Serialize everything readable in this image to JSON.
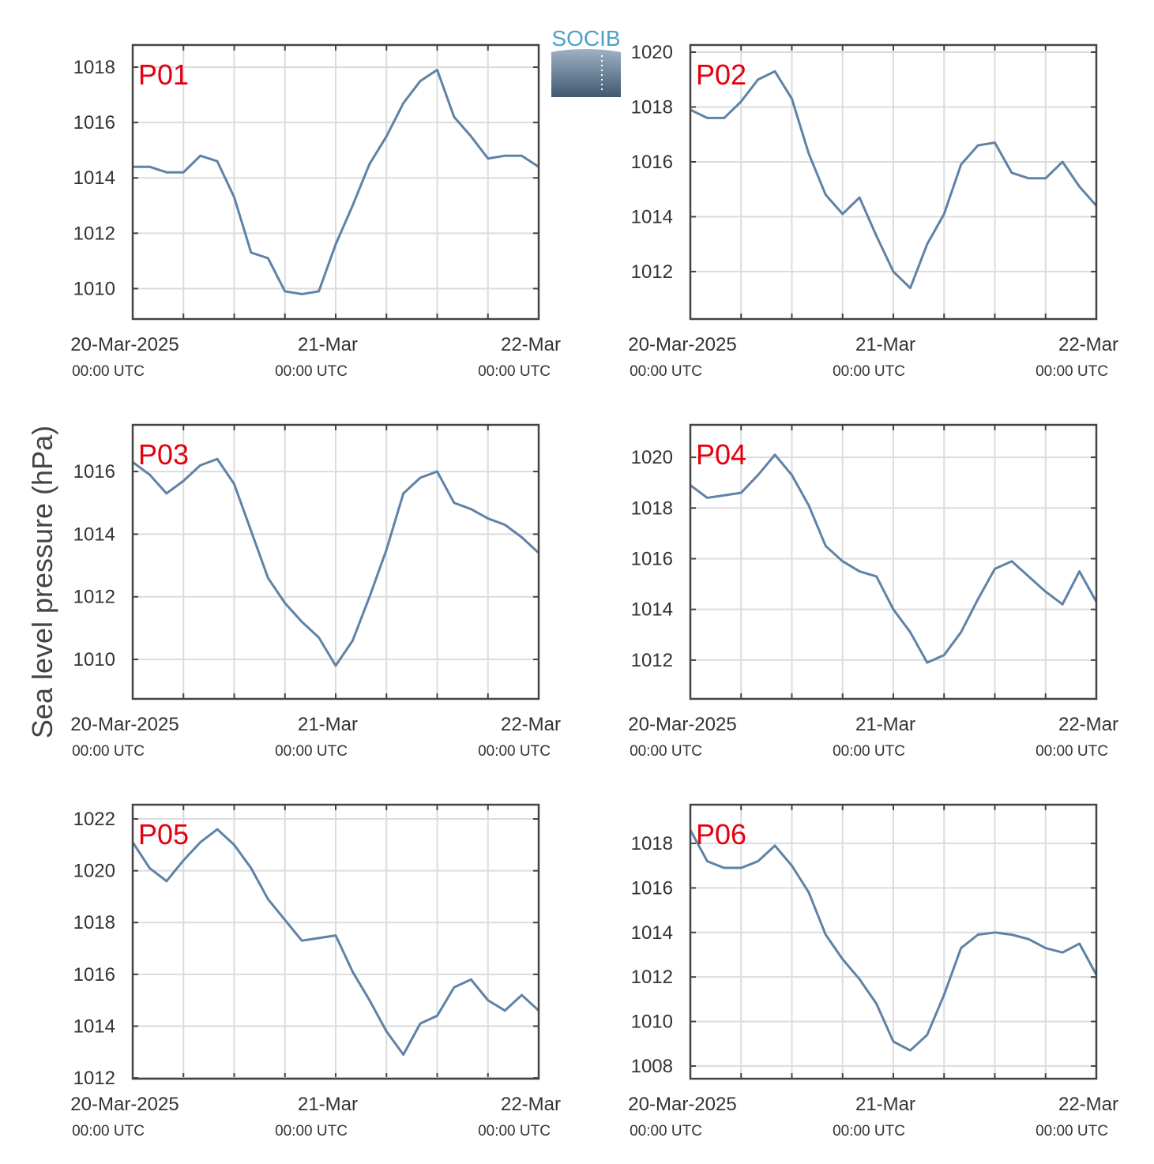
{
  "ylabel": "Sea level pressure (hPa)",
  "logo": "SOCIB",
  "chart_data": [
    {
      "type": "line",
      "label": "P01",
      "x": [
        "2025-03-20T00:00",
        "2025-03-20T02:00",
        "2025-03-20T04:00",
        "2025-03-20T06:00",
        "2025-03-20T08:00",
        "2025-03-20T10:00",
        "2025-03-20T12:00",
        "2025-03-20T14:00",
        "2025-03-20T16:00",
        "2025-03-20T18:00",
        "2025-03-20T20:00",
        "2025-03-20T22:00",
        "2025-03-21T00:00",
        "2025-03-21T02:00",
        "2025-03-21T04:00",
        "2025-03-21T06:00",
        "2025-03-21T08:00",
        "2025-03-21T10:00",
        "2025-03-21T12:00",
        "2025-03-21T14:00",
        "2025-03-21T16:00",
        "2025-03-21T18:00",
        "2025-03-21T20:00",
        "2025-03-21T22:00",
        "2025-03-22T00:00"
      ],
      "series": [
        {
          "color": "#5f82a6",
          "values": [
            1014.4,
            1014.4,
            1014.2,
            1014.2,
            1014.8,
            1014.6,
            1013.3,
            1011.3,
            1011.1,
            1009.9,
            1009.8,
            1009.9,
            1011.6,
            1013.0,
            1014.5,
            1015.5,
            1016.7,
            1017.5,
            1017.9,
            1016.2,
            1015.5,
            1014.7,
            1014.8,
            1014.8,
            1014.4
          ]
        }
      ],
      "xlim": [
        "2025-03-20T00:00",
        "2025-03-22T00:00"
      ],
      "xticks": [
        {
          "value": "2025-03-20T00:00",
          "label": "20-Mar-2025",
          "time_label": "00:00 UTC"
        },
        {
          "value": "2025-03-20T06:00",
          "label": null
        },
        {
          "value": "2025-03-20T12:00",
          "label": null
        },
        {
          "value": "2025-03-20T18:00",
          "label": null
        },
        {
          "value": "2025-03-21T00:00",
          "label": "21-Mar",
          "time_label": "00:00 UTC"
        },
        {
          "value": "2025-03-21T06:00",
          "label": null
        },
        {
          "value": "2025-03-21T12:00",
          "label": null
        },
        {
          "value": "2025-03-21T18:00",
          "label": null
        },
        {
          "value": "2025-03-22T00:00",
          "label": "22-Mar",
          "time_label": "00:00 UTC"
        }
      ],
      "ylim": [
        1008.9,
        1018.8
      ],
      "yticks": [
        1010,
        1012,
        1014,
        1016,
        1018
      ],
      "grid": true
    },
    {
      "type": "line",
      "label": "P02",
      "x": [
        "2025-03-20T00:00",
        "2025-03-20T02:00",
        "2025-03-20T04:00",
        "2025-03-20T06:00",
        "2025-03-20T08:00",
        "2025-03-20T10:00",
        "2025-03-20T12:00",
        "2025-03-20T14:00",
        "2025-03-20T16:00",
        "2025-03-20T18:00",
        "2025-03-20T20:00",
        "2025-03-20T22:00",
        "2025-03-21T00:00",
        "2025-03-21T02:00",
        "2025-03-21T04:00",
        "2025-03-21T06:00",
        "2025-03-21T08:00",
        "2025-03-21T10:00",
        "2025-03-21T12:00",
        "2025-03-21T14:00",
        "2025-03-21T16:00",
        "2025-03-21T18:00",
        "2025-03-21T20:00",
        "2025-03-21T22:00",
        "2025-03-22T00:00"
      ],
      "series": [
        {
          "color": "#5f82a6",
          "values": [
            1017.9,
            1017.6,
            1017.6,
            1018.2,
            1019.0,
            1019.3,
            1018.3,
            1016.3,
            1014.8,
            1014.1,
            1014.7,
            1013.3,
            1012.0,
            1011.4,
            1013.0,
            1014.1,
            1015.9,
            1016.6,
            1016.7,
            1015.6,
            1015.4,
            1015.4,
            1016.0,
            1015.1,
            1014.4
          ]
        }
      ],
      "xlim": [
        "2025-03-20T00:00",
        "2025-03-22T00:00"
      ],
      "xticks": [
        {
          "value": "2025-03-20T00:00",
          "label": "20-Mar-2025",
          "time_label": "00:00 UTC"
        },
        {
          "value": "2025-03-20T06:00",
          "label": null
        },
        {
          "value": "2025-03-20T12:00",
          "label": null
        },
        {
          "value": "2025-03-20T18:00",
          "label": null
        },
        {
          "value": "2025-03-21T00:00",
          "label": "21-Mar",
          "time_label": "00:00 UTC"
        },
        {
          "value": "2025-03-21T06:00",
          "label": null
        },
        {
          "value": "2025-03-21T12:00",
          "label": null
        },
        {
          "value": "2025-03-21T18:00",
          "label": null
        },
        {
          "value": "2025-03-22T00:00",
          "label": "22-Mar",
          "time_label": "00:00 UTC"
        }
      ],
      "ylim": [
        1010.27,
        1020.26
      ],
      "yticks": [
        1012,
        1014,
        1016,
        1018,
        1020
      ],
      "grid": true
    },
    {
      "type": "line",
      "label": "P03",
      "x": [
        "2025-03-20T00:00",
        "2025-03-20T02:00",
        "2025-03-20T04:00",
        "2025-03-20T06:00",
        "2025-03-20T08:00",
        "2025-03-20T10:00",
        "2025-03-20T12:00",
        "2025-03-20T14:00",
        "2025-03-20T16:00",
        "2025-03-20T18:00",
        "2025-03-20T20:00",
        "2025-03-20T22:00",
        "2025-03-21T00:00",
        "2025-03-21T02:00",
        "2025-03-21T04:00",
        "2025-03-21T06:00",
        "2025-03-21T08:00",
        "2025-03-21T10:00",
        "2025-03-21T12:00",
        "2025-03-21T14:00",
        "2025-03-21T16:00",
        "2025-03-21T18:00",
        "2025-03-21T20:00",
        "2025-03-21T22:00",
        "2025-03-22T00:00"
      ],
      "series": [
        {
          "color": "#5f82a6",
          "values": [
            1016.3,
            1015.9,
            1015.3,
            1015.7,
            1016.2,
            1016.4,
            1015.6,
            1014.1,
            1012.6,
            1011.8,
            1011.2,
            1010.7,
            1009.8,
            1010.6,
            1012.0,
            1013.5,
            1015.3,
            1015.8,
            1016.0,
            1015.0,
            1014.8,
            1014.5,
            1014.3,
            1013.9,
            1013.4
          ]
        }
      ],
      "xlim": [
        "2025-03-20T00:00",
        "2025-03-22T00:00"
      ],
      "xticks": [
        {
          "value": "2025-03-20T00:00",
          "label": "20-Mar-2025",
          "time_label": "00:00 UTC"
        },
        {
          "value": "2025-03-20T06:00",
          "label": null
        },
        {
          "value": "2025-03-20T12:00",
          "label": null
        },
        {
          "value": "2025-03-20T18:00",
          "label": null
        },
        {
          "value": "2025-03-21T00:00",
          "label": "21-Mar",
          "time_label": "00:00 UTC"
        },
        {
          "value": "2025-03-21T06:00",
          "label": null
        },
        {
          "value": "2025-03-21T12:00",
          "label": null
        },
        {
          "value": "2025-03-21T18:00",
          "label": null
        },
        {
          "value": "2025-03-22T00:00",
          "label": "22-Mar",
          "time_label": "00:00 UTC"
        }
      ],
      "ylim": [
        1008.74,
        1017.49
      ],
      "yticks": [
        1010,
        1012,
        1014,
        1016
      ],
      "grid": true
    },
    {
      "type": "line",
      "label": "P04",
      "x": [
        "2025-03-20T00:00",
        "2025-03-20T02:00",
        "2025-03-20T04:00",
        "2025-03-20T06:00",
        "2025-03-20T08:00",
        "2025-03-20T10:00",
        "2025-03-20T12:00",
        "2025-03-20T14:00",
        "2025-03-20T16:00",
        "2025-03-20T18:00",
        "2025-03-20T20:00",
        "2025-03-20T22:00",
        "2025-03-21T00:00",
        "2025-03-21T02:00",
        "2025-03-21T04:00",
        "2025-03-21T06:00",
        "2025-03-21T08:00",
        "2025-03-21T10:00",
        "2025-03-21T12:00",
        "2025-03-21T14:00",
        "2025-03-21T16:00",
        "2025-03-21T18:00",
        "2025-03-21T20:00",
        "2025-03-21T22:00",
        "2025-03-22T00:00"
      ],
      "series": [
        {
          "color": "#5f82a6",
          "values": [
            1018.9,
            1018.4,
            1018.5,
            1018.6,
            1019.3,
            1020.1,
            1019.3,
            1018.1,
            1016.5,
            1015.9,
            1015.5,
            1015.3,
            1014.0,
            1013.1,
            1011.9,
            1012.2,
            1013.1,
            1014.4,
            1015.6,
            1015.9,
            1015.3,
            1014.7,
            1014.2,
            1015.5,
            1014.3
          ]
        }
      ],
      "xlim": [
        "2025-03-20T00:00",
        "2025-03-22T00:00"
      ],
      "xticks": [
        {
          "value": "2025-03-20T00:00",
          "label": "20-Mar-2025",
          "time_label": "00:00 UTC"
        },
        {
          "value": "2025-03-20T06:00",
          "label": null
        },
        {
          "value": "2025-03-20T12:00",
          "label": null
        },
        {
          "value": "2025-03-20T18:00",
          "label": null
        },
        {
          "value": "2025-03-21T00:00",
          "label": "21-Mar",
          "time_label": "00:00 UTC"
        },
        {
          "value": "2025-03-21T06:00",
          "label": null
        },
        {
          "value": "2025-03-21T12:00",
          "label": null
        },
        {
          "value": "2025-03-21T18:00",
          "label": null
        },
        {
          "value": "2025-03-22T00:00",
          "label": "22-Mar",
          "time_label": "00:00 UTC"
        }
      ],
      "ylim": [
        1010.47,
        1021.28
      ],
      "yticks": [
        1012,
        1014,
        1016,
        1018,
        1020
      ],
      "grid": true
    },
    {
      "type": "line",
      "label": "P05",
      "x": [
        "2025-03-20T00:00",
        "2025-03-20T02:00",
        "2025-03-20T04:00",
        "2025-03-20T06:00",
        "2025-03-20T08:00",
        "2025-03-20T10:00",
        "2025-03-20T12:00",
        "2025-03-20T14:00",
        "2025-03-20T16:00",
        "2025-03-20T18:00",
        "2025-03-20T20:00",
        "2025-03-20T22:00",
        "2025-03-21T00:00",
        "2025-03-21T02:00",
        "2025-03-21T04:00",
        "2025-03-21T06:00",
        "2025-03-21T08:00",
        "2025-03-21T10:00",
        "2025-03-21T12:00",
        "2025-03-21T14:00",
        "2025-03-21T16:00",
        "2025-03-21T18:00",
        "2025-03-21T20:00",
        "2025-03-21T22:00",
        "2025-03-22T00:00"
      ],
      "series": [
        {
          "color": "#5f82a6",
          "values": [
            1021.1,
            1020.1,
            1019.6,
            1020.4,
            1021.1,
            1021.6,
            1021.0,
            1020.1,
            1018.9,
            1018.1,
            1017.3,
            1017.4,
            1017.5,
            1016.1,
            1015.0,
            1013.8,
            1012.9,
            1014.1,
            1014.4,
            1015.5,
            1015.8,
            1015.0,
            1014.6,
            1015.2,
            1014.6
          ]
        }
      ],
      "xlim": [
        "2025-03-20T00:00",
        "2025-03-22T00:00"
      ],
      "xticks": [
        {
          "value": "2025-03-20T00:00",
          "label": "20-Mar-2025",
          "time_label": "00:00 UTC"
        },
        {
          "value": "2025-03-20T06:00",
          "label": null
        },
        {
          "value": "2025-03-20T12:00",
          "label": null
        },
        {
          "value": "2025-03-20T18:00",
          "label": null
        },
        {
          "value": "2025-03-21T00:00",
          "label": "21-Mar",
          "time_label": "00:00 UTC"
        },
        {
          "value": "2025-03-21T06:00",
          "label": null
        },
        {
          "value": "2025-03-21T12:00",
          "label": null
        },
        {
          "value": "2025-03-21T18:00",
          "label": null
        },
        {
          "value": "2025-03-22T00:00",
          "label": "22-Mar",
          "time_label": "00:00 UTC"
        }
      ],
      "ylim": [
        1011.97,
        1022.55
      ],
      "yticks": [
        1012,
        1014,
        1016,
        1018,
        1020,
        1022
      ],
      "grid": true
    },
    {
      "type": "line",
      "label": "P06",
      "x": [
        "2025-03-20T00:00",
        "2025-03-20T02:00",
        "2025-03-20T04:00",
        "2025-03-20T06:00",
        "2025-03-20T08:00",
        "2025-03-20T10:00",
        "2025-03-20T12:00",
        "2025-03-20T14:00",
        "2025-03-20T16:00",
        "2025-03-20T18:00",
        "2025-03-20T20:00",
        "2025-03-20T22:00",
        "2025-03-21T00:00",
        "2025-03-21T02:00",
        "2025-03-21T04:00",
        "2025-03-21T06:00",
        "2025-03-21T08:00",
        "2025-03-21T10:00",
        "2025-03-21T12:00",
        "2025-03-21T14:00",
        "2025-03-21T16:00",
        "2025-03-21T18:00",
        "2025-03-21T20:00",
        "2025-03-21T22:00",
        "2025-03-22T00:00"
      ],
      "series": [
        {
          "color": "#5f82a6",
          "values": [
            1018.6,
            1017.2,
            1016.9,
            1016.9,
            1017.2,
            1017.9,
            1017.0,
            1015.8,
            1013.9,
            1012.8,
            1011.9,
            1010.8,
            1009.1,
            1008.7,
            1009.4,
            1011.2,
            1013.3,
            1013.9,
            1014.0,
            1013.9,
            1013.7,
            1013.3,
            1013.1,
            1013.5,
            1012.1
          ]
        }
      ],
      "xlim": [
        "2025-03-20T00:00",
        "2025-03-22T00:00"
      ],
      "xticks": [
        {
          "value": "2025-03-20T00:00",
          "label": "20-Mar-2025",
          "time_label": "00:00 UTC"
        },
        {
          "value": "2025-03-20T06:00",
          "label": null
        },
        {
          "value": "2025-03-20T12:00",
          "label": null
        },
        {
          "value": "2025-03-20T18:00",
          "label": null
        },
        {
          "value": "2025-03-21T00:00",
          "label": "21-Mar",
          "time_label": "00:00 UTC"
        },
        {
          "value": "2025-03-21T06:00",
          "label": null
        },
        {
          "value": "2025-03-21T12:00",
          "label": null
        },
        {
          "value": "2025-03-21T18:00",
          "label": null
        },
        {
          "value": "2025-03-22T00:00",
          "label": "22-Mar",
          "time_label": "00:00 UTC"
        }
      ],
      "ylim": [
        1007.43,
        1019.74
      ],
      "yticks": [
        1008,
        1010,
        1012,
        1014,
        1016,
        1018
      ],
      "grid": true
    }
  ]
}
